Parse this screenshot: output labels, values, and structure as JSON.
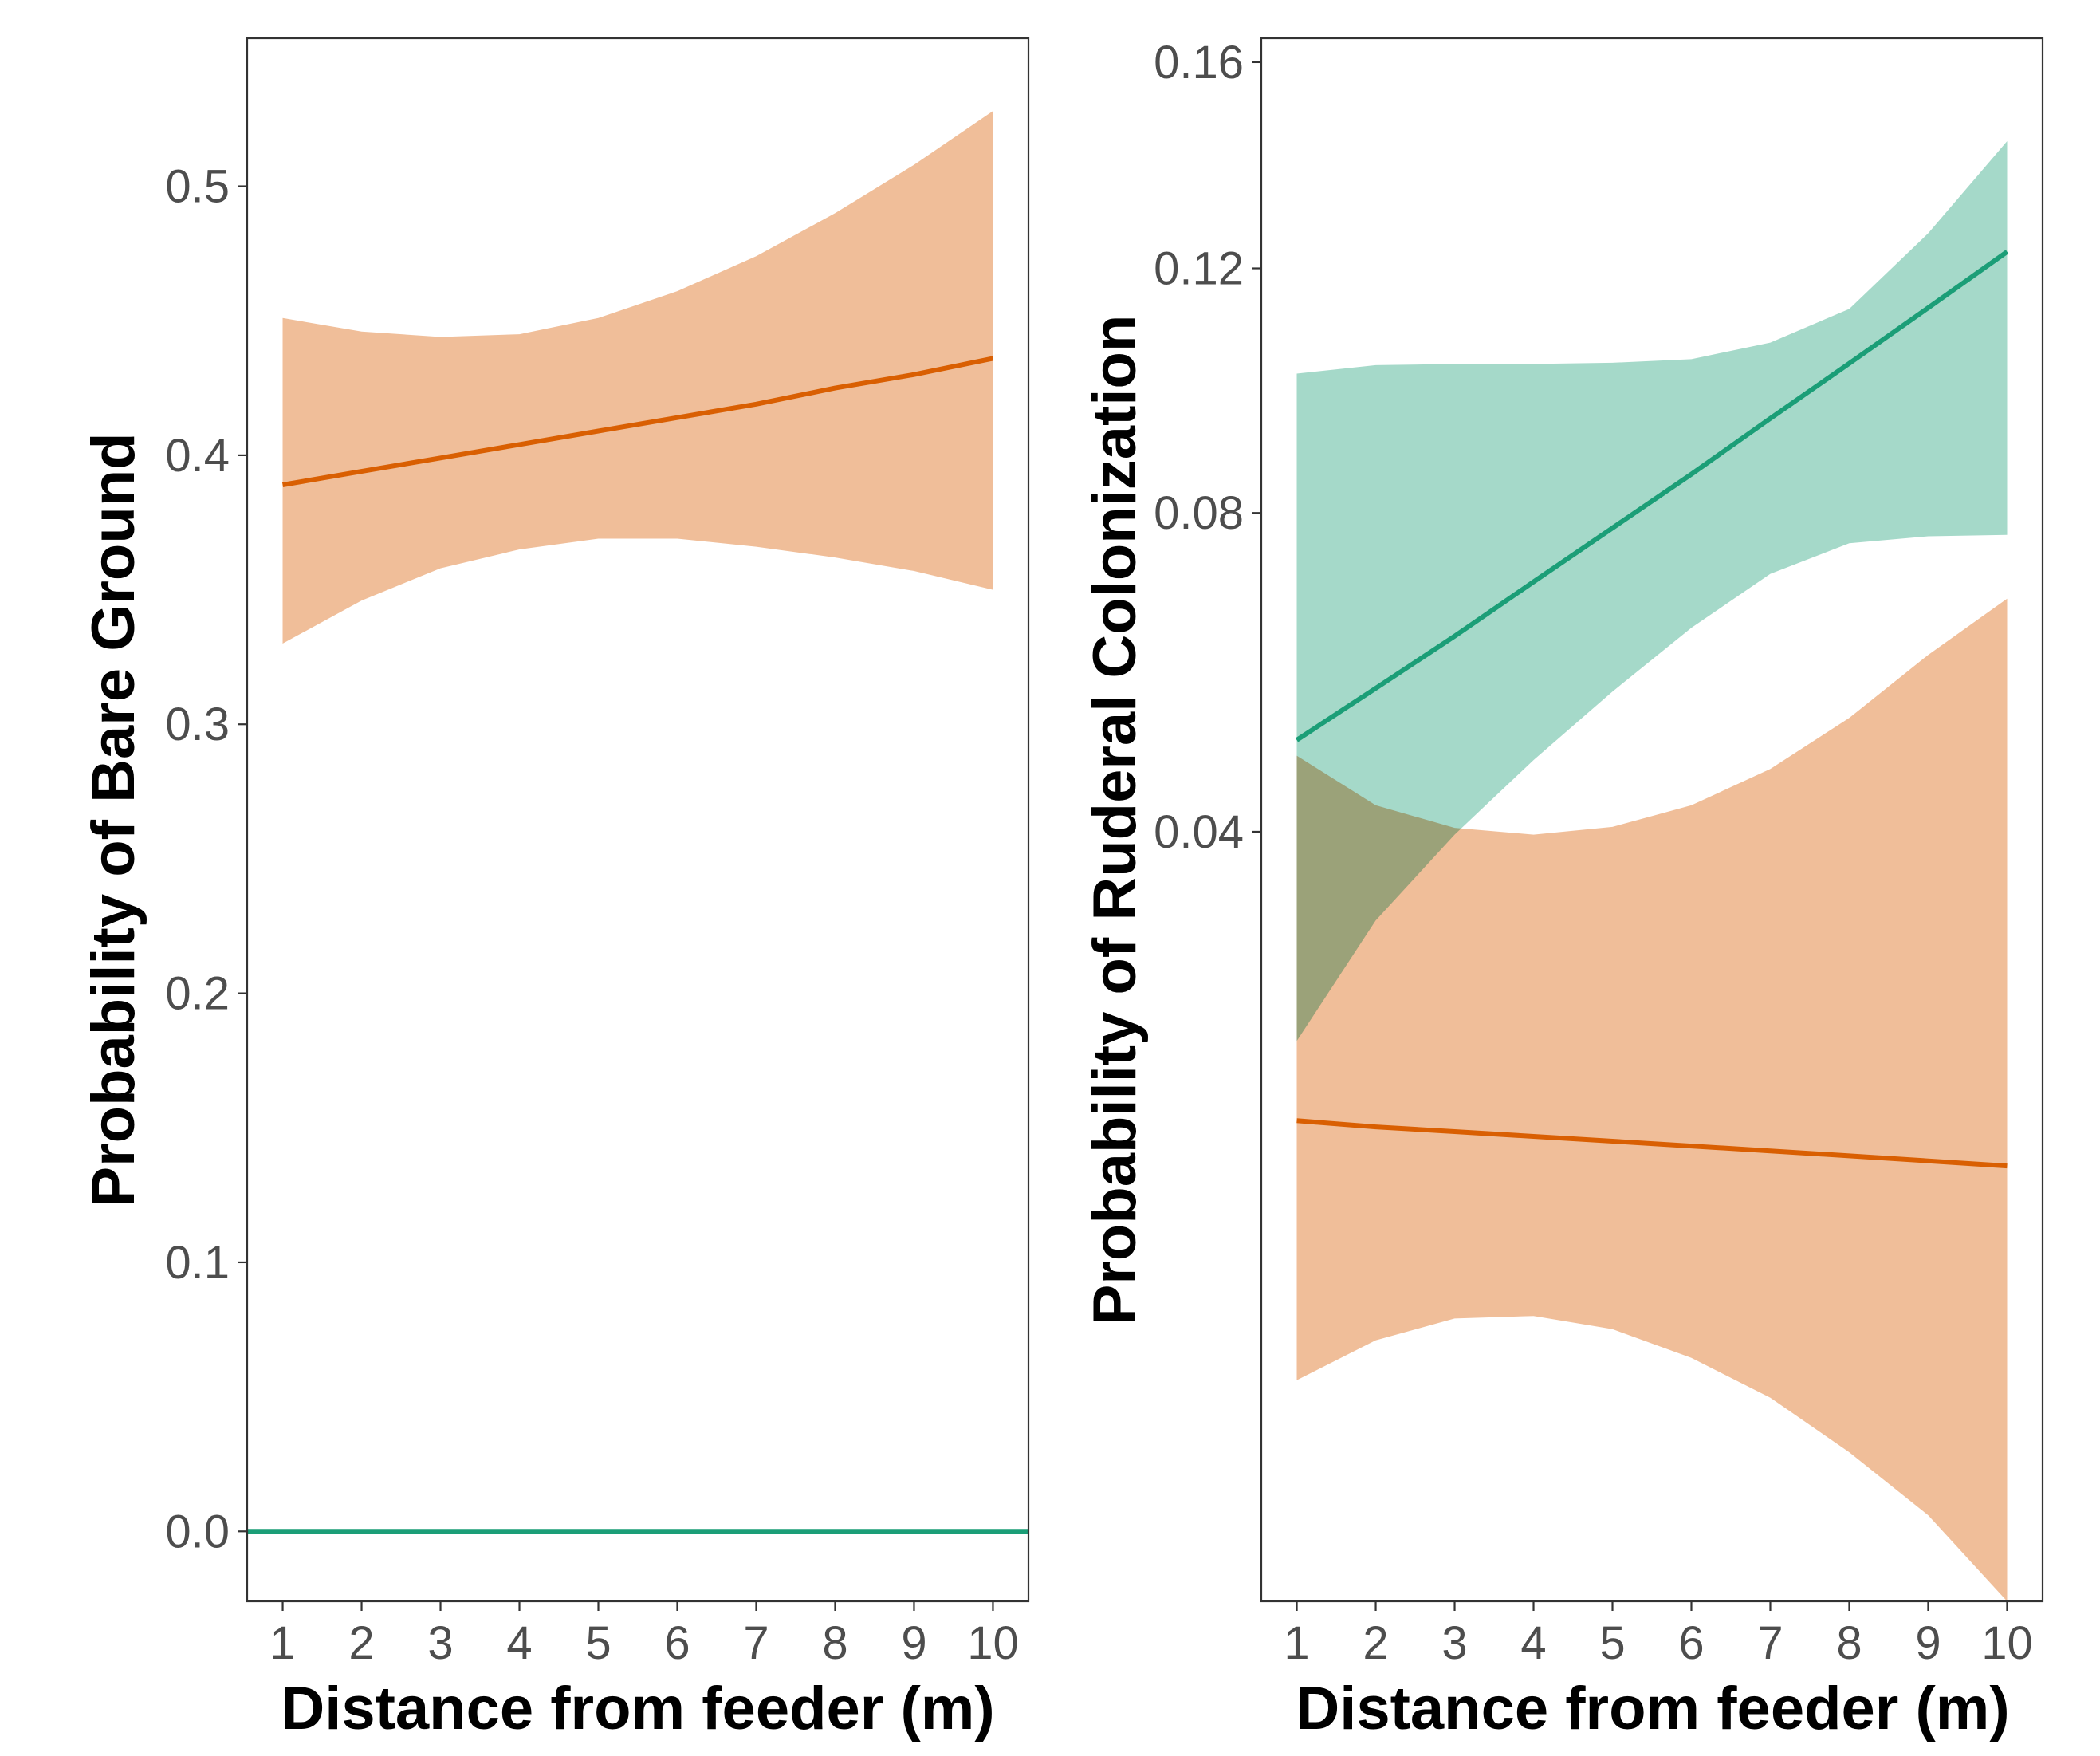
{
  "colors": {
    "orange_line": "#D95F02",
    "orange_band": "#F0BE99",
    "green_line": "#1B9E77",
    "green_band": "#A5D9C9"
  },
  "chart_data": [
    {
      "type": "line",
      "ylabel": "Probability of Bare Ground",
      "xlabel": "Distance from feeder (m)",
      "x_ticks": [
        1,
        2,
        3,
        4,
        5,
        6,
        7,
        8,
        9,
        10
      ],
      "y_ticks": [
        "0.0",
        "0.1",
        "0.2",
        "0.3",
        "0.4",
        "0.5"
      ],
      "xlim": [
        0.55,
        10.45
      ],
      "ylim": [
        -0.026,
        0.555
      ],
      "grid": false,
      "series": [
        {
          "color": "#D95F02",
          "band_color": "#F0BE99",
          "x": [
            1,
            2,
            3,
            4,
            5,
            6,
            7,
            8,
            9,
            10
          ],
          "y": [
            0.389,
            0.394,
            0.399,
            0.404,
            0.409,
            0.414,
            0.419,
            0.425,
            0.43,
            0.436
          ],
          "lower": [
            0.33,
            0.346,
            0.358,
            0.365,
            0.369,
            0.369,
            0.366,
            0.362,
            0.357,
            0.35
          ],
          "upper": [
            0.451,
            0.446,
            0.444,
            0.445,
            0.451,
            0.461,
            0.474,
            0.49,
            0.508,
            0.528
          ]
        },
        {
          "color": "#1B9E77",
          "band_color": "#A5D9C9",
          "x": [
            0.55,
            10.45
          ],
          "y": [
            0.0,
            0.0
          ],
          "lower": [
            0.0,
            0.0
          ],
          "upper": [
            0.0,
            0.0
          ]
        }
      ]
    },
    {
      "type": "line",
      "ylabel": "Probability of Ruderal Colonization",
      "xlabel": "Distance from feeder (m)",
      "x_ticks": [
        1,
        2,
        3,
        4,
        5,
        6,
        7,
        8,
        9,
        10
      ],
      "y_ticks": [
        "0.04",
        "0.08",
        "0.12",
        "0.16"
      ],
      "y_tick_values": [
        0.04,
        0.08,
        0.12,
        0.16
      ],
      "y_scale": "sqrt",
      "xlim": [
        0.55,
        10.45
      ],
      "ylim": [
        0.0,
        0.165
      ],
      "grid": false,
      "series": [
        {
          "color": "#1B9E77",
          "band_color": "#A5D9C9",
          "x": [
            1,
            2,
            3,
            4,
            5,
            6,
            7,
            8,
            9,
            10
          ],
          "y": [
            0.0501,
            0.0563,
            0.0629,
            0.0702,
            0.0778,
            0.0858,
            0.0945,
            0.1035,
            0.113,
            0.123
          ],
          "lower": [
            0.0212,
            0.0313,
            0.0397,
            0.0478,
            0.0559,
            0.064,
            0.0713,
            0.0756,
            0.0766,
            0.0768
          ],
          "upper": [
            0.1018,
            0.1032,
            0.1034,
            0.1034,
            0.1036,
            0.1042,
            0.107,
            0.1128,
            0.1264,
            0.144
          ]
        },
        {
          "color": "#D95F02",
          "band_color": "#F0BE99",
          "x": [
            1,
            2,
            3,
            4,
            5,
            6,
            7,
            8,
            9,
            10
          ],
          "y": [
            0.0156,
            0.0152,
            0.0149,
            0.0146,
            0.0143,
            0.014,
            0.0137,
            0.0134,
            0.0131,
            0.0128
          ],
          "lower": [
            0.0033,
            0.0046,
            0.0054,
            0.0055,
            0.005,
            0.004,
            0.0028,
            0.0015,
            0.0005,
            0.0
          ],
          "upper": [
            0.0483,
            0.0428,
            0.0404,
            0.0397,
            0.0405,
            0.0428,
            0.0468,
            0.0527,
            0.0605,
            0.0679
          ]
        }
      ]
    }
  ]
}
